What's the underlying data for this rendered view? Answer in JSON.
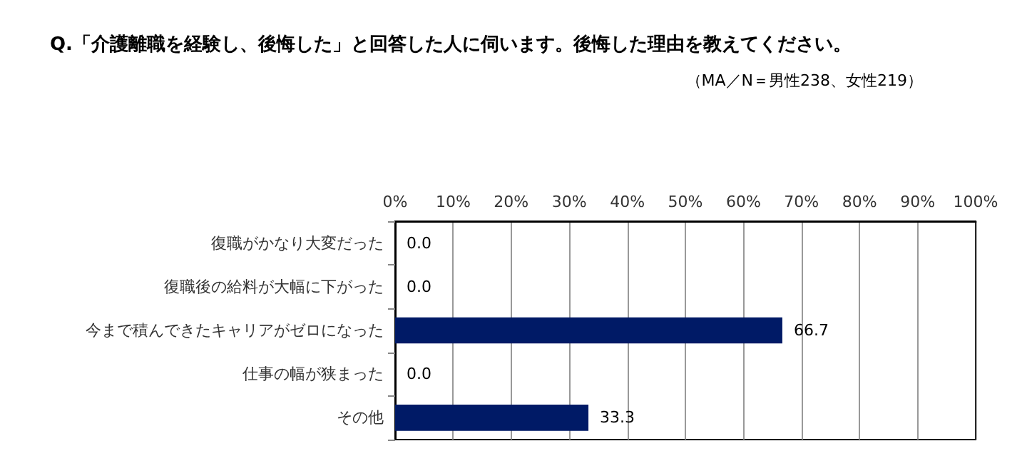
{
  "chart_data": {
    "type": "bar",
    "orientation": "horizontal",
    "title": "Q.「介護離職を経験し、後悔した」と回答した人に伺います。後悔した理由を教えてください。",
    "subtitle": "（MA／N＝男性238、女性219）",
    "categories": [
      "復職がかなり大変だった",
      "復職後の給料が大幅に下がった",
      "今まで積んできたキャリアがゼロになった",
      "仕事の幅が狭まった",
      "その他"
    ],
    "values": [
      0,
      0,
      66.7,
      0,
      33.3
    ],
    "value_labels": [
      "0.0",
      "0.0",
      "66.7",
      "0.0",
      "33.3"
    ],
    "color": "#001a66",
    "xlim": [
      0,
      100
    ],
    "xticks": [
      {
        "value": 0,
        "label": "0%"
      },
      {
        "value": 10,
        "label": "10%"
      },
      {
        "value": 20,
        "label": "20%"
      },
      {
        "value": 30,
        "label": "30%"
      },
      {
        "value": 40,
        "label": "40%"
      },
      {
        "value": 50,
        "label": "50%"
      },
      {
        "value": 60,
        "label": "60%"
      },
      {
        "value": 70,
        "label": "70%"
      },
      {
        "value": 80,
        "label": "80%"
      },
      {
        "value": 90,
        "label": "90%"
      },
      {
        "value": 100,
        "label": "100%"
      }
    ],
    "grid": "x"
  }
}
